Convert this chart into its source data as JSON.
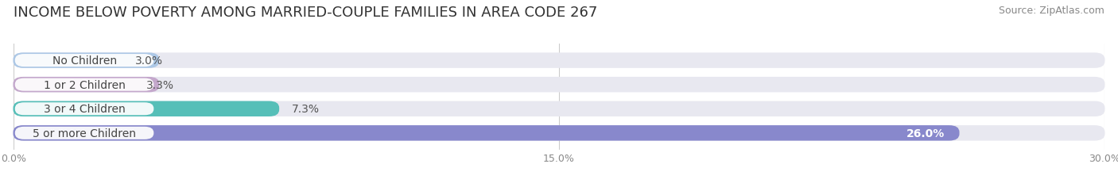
{
  "title": "INCOME BELOW POVERTY AMONG MARRIED-COUPLE FAMILIES IN AREA CODE 267",
  "source": "Source: ZipAtlas.com",
  "categories": [
    "No Children",
    "1 or 2 Children",
    "3 or 4 Children",
    "5 or more Children"
  ],
  "values": [
    3.0,
    3.3,
    7.3,
    26.0
  ],
  "labels": [
    "3.0%",
    "3.3%",
    "7.3%",
    "26.0%"
  ],
  "bar_colors": [
    "#adc8e6",
    "#c4a8cc",
    "#56bfb8",
    "#8888cc"
  ],
  "background_color": "#ffffff",
  "bar_bg_color": "#e8e8f0",
  "xlim": [
    0,
    30.0
  ],
  "xticks": [
    0.0,
    15.0,
    30.0
  ],
  "xticklabels": [
    "0.0%",
    "15.0%",
    "30.0%"
  ],
  "title_fontsize": 13,
  "source_fontsize": 9,
  "label_fontsize": 10,
  "tick_fontsize": 9,
  "bar_height": 0.62,
  "label_inside_threshold": 22.0,
  "label_text_color_inside": "#ffffff",
  "label_text_color_outside": "#555555",
  "category_text_color": "#444444",
  "grid_color": "#cccccc",
  "tick_color": "#888888"
}
